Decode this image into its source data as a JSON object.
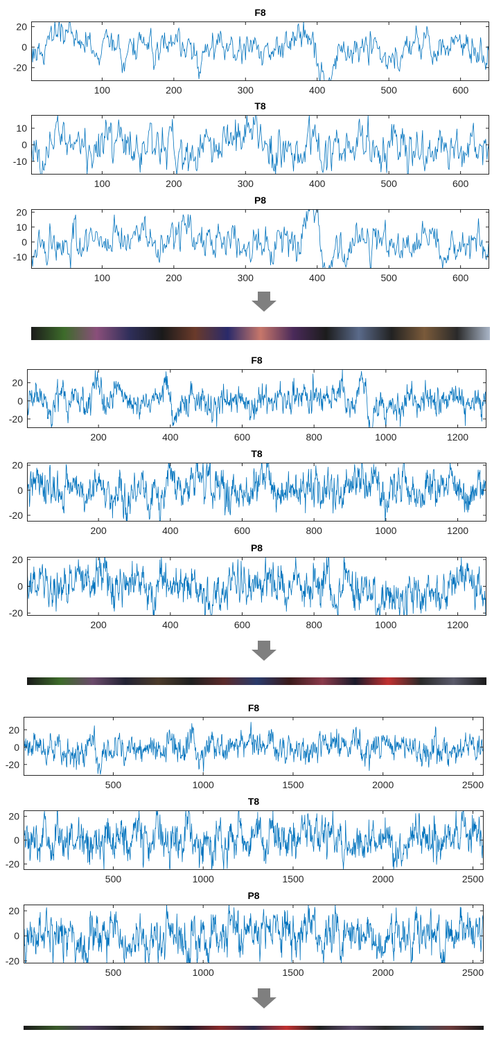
{
  "colors": {
    "signal": "#0072BD",
    "axis": "#262626",
    "arrow": "#7F7F7F",
    "background": "#FFFFFF"
  },
  "chart_data": [
    {
      "type": "line",
      "title": "F8",
      "x_range": [
        1,
        640
      ],
      "ylim": [
        -33,
        25
      ],
      "x_ticks": [
        100,
        200,
        300,
        400,
        500,
        600
      ],
      "y_ticks": [
        -20,
        0,
        20
      ],
      "grid": false,
      "samples": 640,
      "amplitude": 8,
      "events": [
        {
          "x": 385,
          "width": 12,
          "height": 22
        },
        {
          "x": 410,
          "width": 14,
          "height": -30
        }
      ],
      "series": [
        {
          "x_start": 1,
          "x_end": 640,
          "sample_count": 640,
          "min": -33,
          "max": 25
        }
      ]
    },
    {
      "type": "line",
      "title": "T8",
      "x_range": [
        1,
        640
      ],
      "ylim": [
        -18,
        18
      ],
      "x_ticks": [
        100,
        200,
        300,
        400,
        500,
        600
      ],
      "y_ticks": [
        -10,
        0,
        10
      ],
      "grid": false,
      "samples": 640,
      "amplitude": 7,
      "events": [
        {
          "x": 395,
          "width": 10,
          "height": 12
        },
        {
          "x": 410,
          "width": 12,
          "height": -14
        }
      ],
      "series": [
        {
          "x_start": 1,
          "x_end": 640,
          "sample_count": 640,
          "min": -18,
          "max": 18
        }
      ]
    },
    {
      "type": "line",
      "title": "P8",
      "x_range": [
        1,
        640
      ],
      "ylim": [
        -18,
        22
      ],
      "x_ticks": [
        100,
        200,
        300,
        400,
        500,
        600
      ],
      "y_ticks": [
        -10,
        0,
        10,
        20
      ],
      "grid": false,
      "samples": 640,
      "amplitude": 7,
      "events": [
        {
          "x": 395,
          "width": 10,
          "height": 12
        },
        {
          "x": 410,
          "width": 12,
          "height": -14
        }
      ],
      "series": [
        {
          "x_start": 1,
          "x_end": 640,
          "sample_count": 640,
          "min": -18,
          "max": 22
        }
      ]
    },
    {
      "type": "line",
      "title": "F8",
      "x_range": [
        1,
        1280
      ],
      "ylim": [
        -30,
        35
      ],
      "x_ticks": [
        200,
        400,
        600,
        800,
        1000,
        1200
      ],
      "y_ticks": [
        -20,
        0,
        20
      ],
      "grid": false,
      "samples": 1280,
      "amplitude": 8,
      "events": [
        {
          "x": 390,
          "width": 14,
          "height": 22
        },
        {
          "x": 412,
          "width": 14,
          "height": -28
        },
        {
          "x": 935,
          "width": 14,
          "height": 28
        },
        {
          "x": 958,
          "width": 14,
          "height": -24
        }
      ],
      "series": [
        {
          "x_start": 1,
          "x_end": 1280,
          "sample_count": 1280,
          "min": -30,
          "max": 35
        }
      ]
    },
    {
      "type": "line",
      "title": "T8",
      "x_range": [
        1,
        1280
      ],
      "ylim": [
        -25,
        22
      ],
      "x_ticks": [
        200,
        400,
        600,
        800,
        1000,
        1200
      ],
      "y_ticks": [
        -20,
        0,
        20
      ],
      "grid": false,
      "samples": 1280,
      "amplitude": 8,
      "events": [
        {
          "x": 395,
          "width": 12,
          "height": 14
        },
        {
          "x": 935,
          "width": 12,
          "height": 16
        }
      ],
      "series": [
        {
          "x_start": 1,
          "x_end": 1280,
          "sample_count": 1280,
          "min": -25,
          "max": 22
        }
      ]
    },
    {
      "type": "line",
      "title": "P8",
      "x_range": [
        1,
        1280
      ],
      "ylim": [
        -22,
        22
      ],
      "x_ticks": [
        200,
        400,
        600,
        800,
        1000,
        1200
      ],
      "y_ticks": [
        -20,
        0,
        20
      ],
      "grid": false,
      "samples": 1280,
      "amplitude": 8,
      "events": [],
      "series": [
        {
          "x_start": 1,
          "x_end": 1280,
          "sample_count": 1280,
          "min": -22,
          "max": 22
        }
      ]
    },
    {
      "type": "line",
      "title": "F8",
      "x_range": [
        1,
        2560
      ],
      "ylim": [
        -33,
        35
      ],
      "x_ticks": [
        500,
        1000,
        1500,
        2000,
        2500
      ],
      "y_ticks": [
        -20,
        0,
        20
      ],
      "grid": false,
      "samples": 1300,
      "amplitude": 8,
      "events": [
        {
          "x": 395,
          "width": 22,
          "height": 22
        },
        {
          "x": 420,
          "width": 20,
          "height": -28
        },
        {
          "x": 940,
          "width": 22,
          "height": 28
        },
        {
          "x": 965,
          "width": 22,
          "height": -24
        }
      ],
      "series": [
        {
          "x_start": 1,
          "x_end": 2560,
          "sample_count": 2560,
          "min": -33,
          "max": 35
        }
      ]
    },
    {
      "type": "line",
      "title": "T8",
      "x_range": [
        1,
        2560
      ],
      "ylim": [
        -25,
        25
      ],
      "x_ticks": [
        500,
        1000,
        1500,
        2000,
        2500
      ],
      "y_ticks": [
        -20,
        0,
        20
      ],
      "grid": false,
      "samples": 1300,
      "amplitude": 9,
      "events": [],
      "series": [
        {
          "x_start": 1,
          "x_end": 2560,
          "sample_count": 2560,
          "min": -25,
          "max": 25
        }
      ]
    },
    {
      "type": "line",
      "title": "P8",
      "x_range": [
        1,
        2560
      ],
      "ylim": [
        -22,
        25
      ],
      "x_ticks": [
        500,
        1000,
        1500,
        2000,
        2500
      ],
      "y_ticks": [
        -20,
        0,
        20
      ],
      "grid": false,
      "samples": 1300,
      "amplitude": 9,
      "events": [],
      "series": [
        {
          "x_start": 1,
          "x_end": 2560,
          "sample_count": 2560,
          "min": -22,
          "max": 25
        }
      ]
    }
  ],
  "image_strips": [
    {
      "colors": [
        "#1b1b1b",
        "#3d6b2a",
        "#8a4f7a",
        "#2f2f5a",
        "#1a1a1a",
        "#6a3a2a",
        "#2a2a6a",
        "#c7776a",
        "#4a2a5a",
        "#1c1c1c",
        "#5a6a8a",
        "#222222",
        "#7a5a3a",
        "#2a2a2a",
        "#aab6c8"
      ]
    },
    {
      "colors": [
        "#1a1a1a",
        "#3d6b2a",
        "#6a4a6a",
        "#222233",
        "#4a3a2a",
        "#1f1f1f",
        "#5a2a2a",
        "#2a3a6a",
        "#3a1a1a",
        "#8a3a4a",
        "#1a1a2a",
        "#c03030",
        "#2a2a2a",
        "#5a5a6a",
        "#1a1a1a"
      ]
    },
    {
      "colors": [
        "#1a1a1a",
        "#3a5a2a",
        "#4a3a5a",
        "#222222",
        "#5a3a2a",
        "#1a1a2a",
        "#8a2a2a",
        "#2a2a4a",
        "#c03030",
        "#1f1f1f",
        "#5a4a6a",
        "#2a2a2a",
        "#3a4a5a",
        "#6a3a3a",
        "#1a1a1a"
      ]
    }
  ]
}
